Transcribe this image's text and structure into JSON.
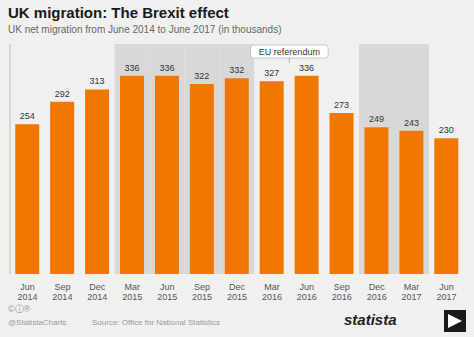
{
  "chart_data": {
    "type": "bar",
    "title": "UK migration: The Brexit effect",
    "subtitle": "UK net migration from June 2014 to June 2017 (in thousands)",
    "categories": [
      "Jun\n2014",
      "Sep\n2014",
      "Dec\n2014",
      "Mar\n2015",
      "Jun\n2015",
      "Sep\n2015",
      "Dec\n2015",
      "Mar\n2016",
      "Jun\n2016",
      "Sep\n2016",
      "Dec\n2016",
      "Mar\n2017",
      "Jun\n2017"
    ],
    "values": [
      254,
      292,
      313,
      336,
      336,
      322,
      332,
      327,
      336,
      273,
      249,
      243,
      230
    ],
    "color": "#F07800",
    "ylim": [
      0,
      390
    ],
    "data_labels": true,
    "tick_labels": "x",
    "grid": false,
    "shaded_regions": [
      [
        "Mar\n2015",
        "Dec\n2015"
      ],
      [
        "Dec\n2016",
        "Mar\n2017"
      ]
    ],
    "annotation": {
      "text": "EU referendum",
      "between": [
        "Mar\n2016",
        "Jun\n2016"
      ]
    },
    "icons": "©ⓘ®",
    "footer_left": "@StatistaCharts",
    "source": "Source: Office for National Statistics",
    "logo": "statista"
  }
}
